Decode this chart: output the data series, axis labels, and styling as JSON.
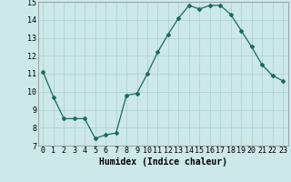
{
  "x": [
    0,
    1,
    2,
    3,
    4,
    5,
    6,
    7,
    8,
    9,
    10,
    11,
    12,
    13,
    14,
    15,
    16,
    17,
    18,
    19,
    20,
    21,
    22,
    23
  ],
  "y": [
    11.1,
    9.7,
    8.5,
    8.5,
    8.5,
    7.4,
    7.6,
    7.7,
    9.8,
    9.9,
    11.0,
    12.2,
    13.2,
    14.1,
    14.8,
    14.6,
    14.8,
    14.8,
    14.3,
    13.4,
    12.5,
    11.5,
    10.9,
    10.6
  ],
  "line_color": "#1a6b5a",
  "marker": "D",
  "markersize": 2.0,
  "linewidth": 0.9,
  "bg_color": "#cce8e8",
  "grid_color": "#aacfcf",
  "xlabel": "Humidex (Indice chaleur)",
  "xlabel_fontsize": 7,
  "tick_fontsize": 6,
  "xlim": [
    -0.5,
    23.5
  ],
  "ylim": [
    7,
    15
  ],
  "yticks": [
    7,
    8,
    9,
    10,
    11,
    12,
    13,
    14,
    15
  ],
  "xticks": [
    0,
    1,
    2,
    3,
    4,
    5,
    6,
    7,
    8,
    9,
    10,
    11,
    12,
    13,
    14,
    15,
    16,
    17,
    18,
    19,
    20,
    21,
    22,
    23
  ]
}
